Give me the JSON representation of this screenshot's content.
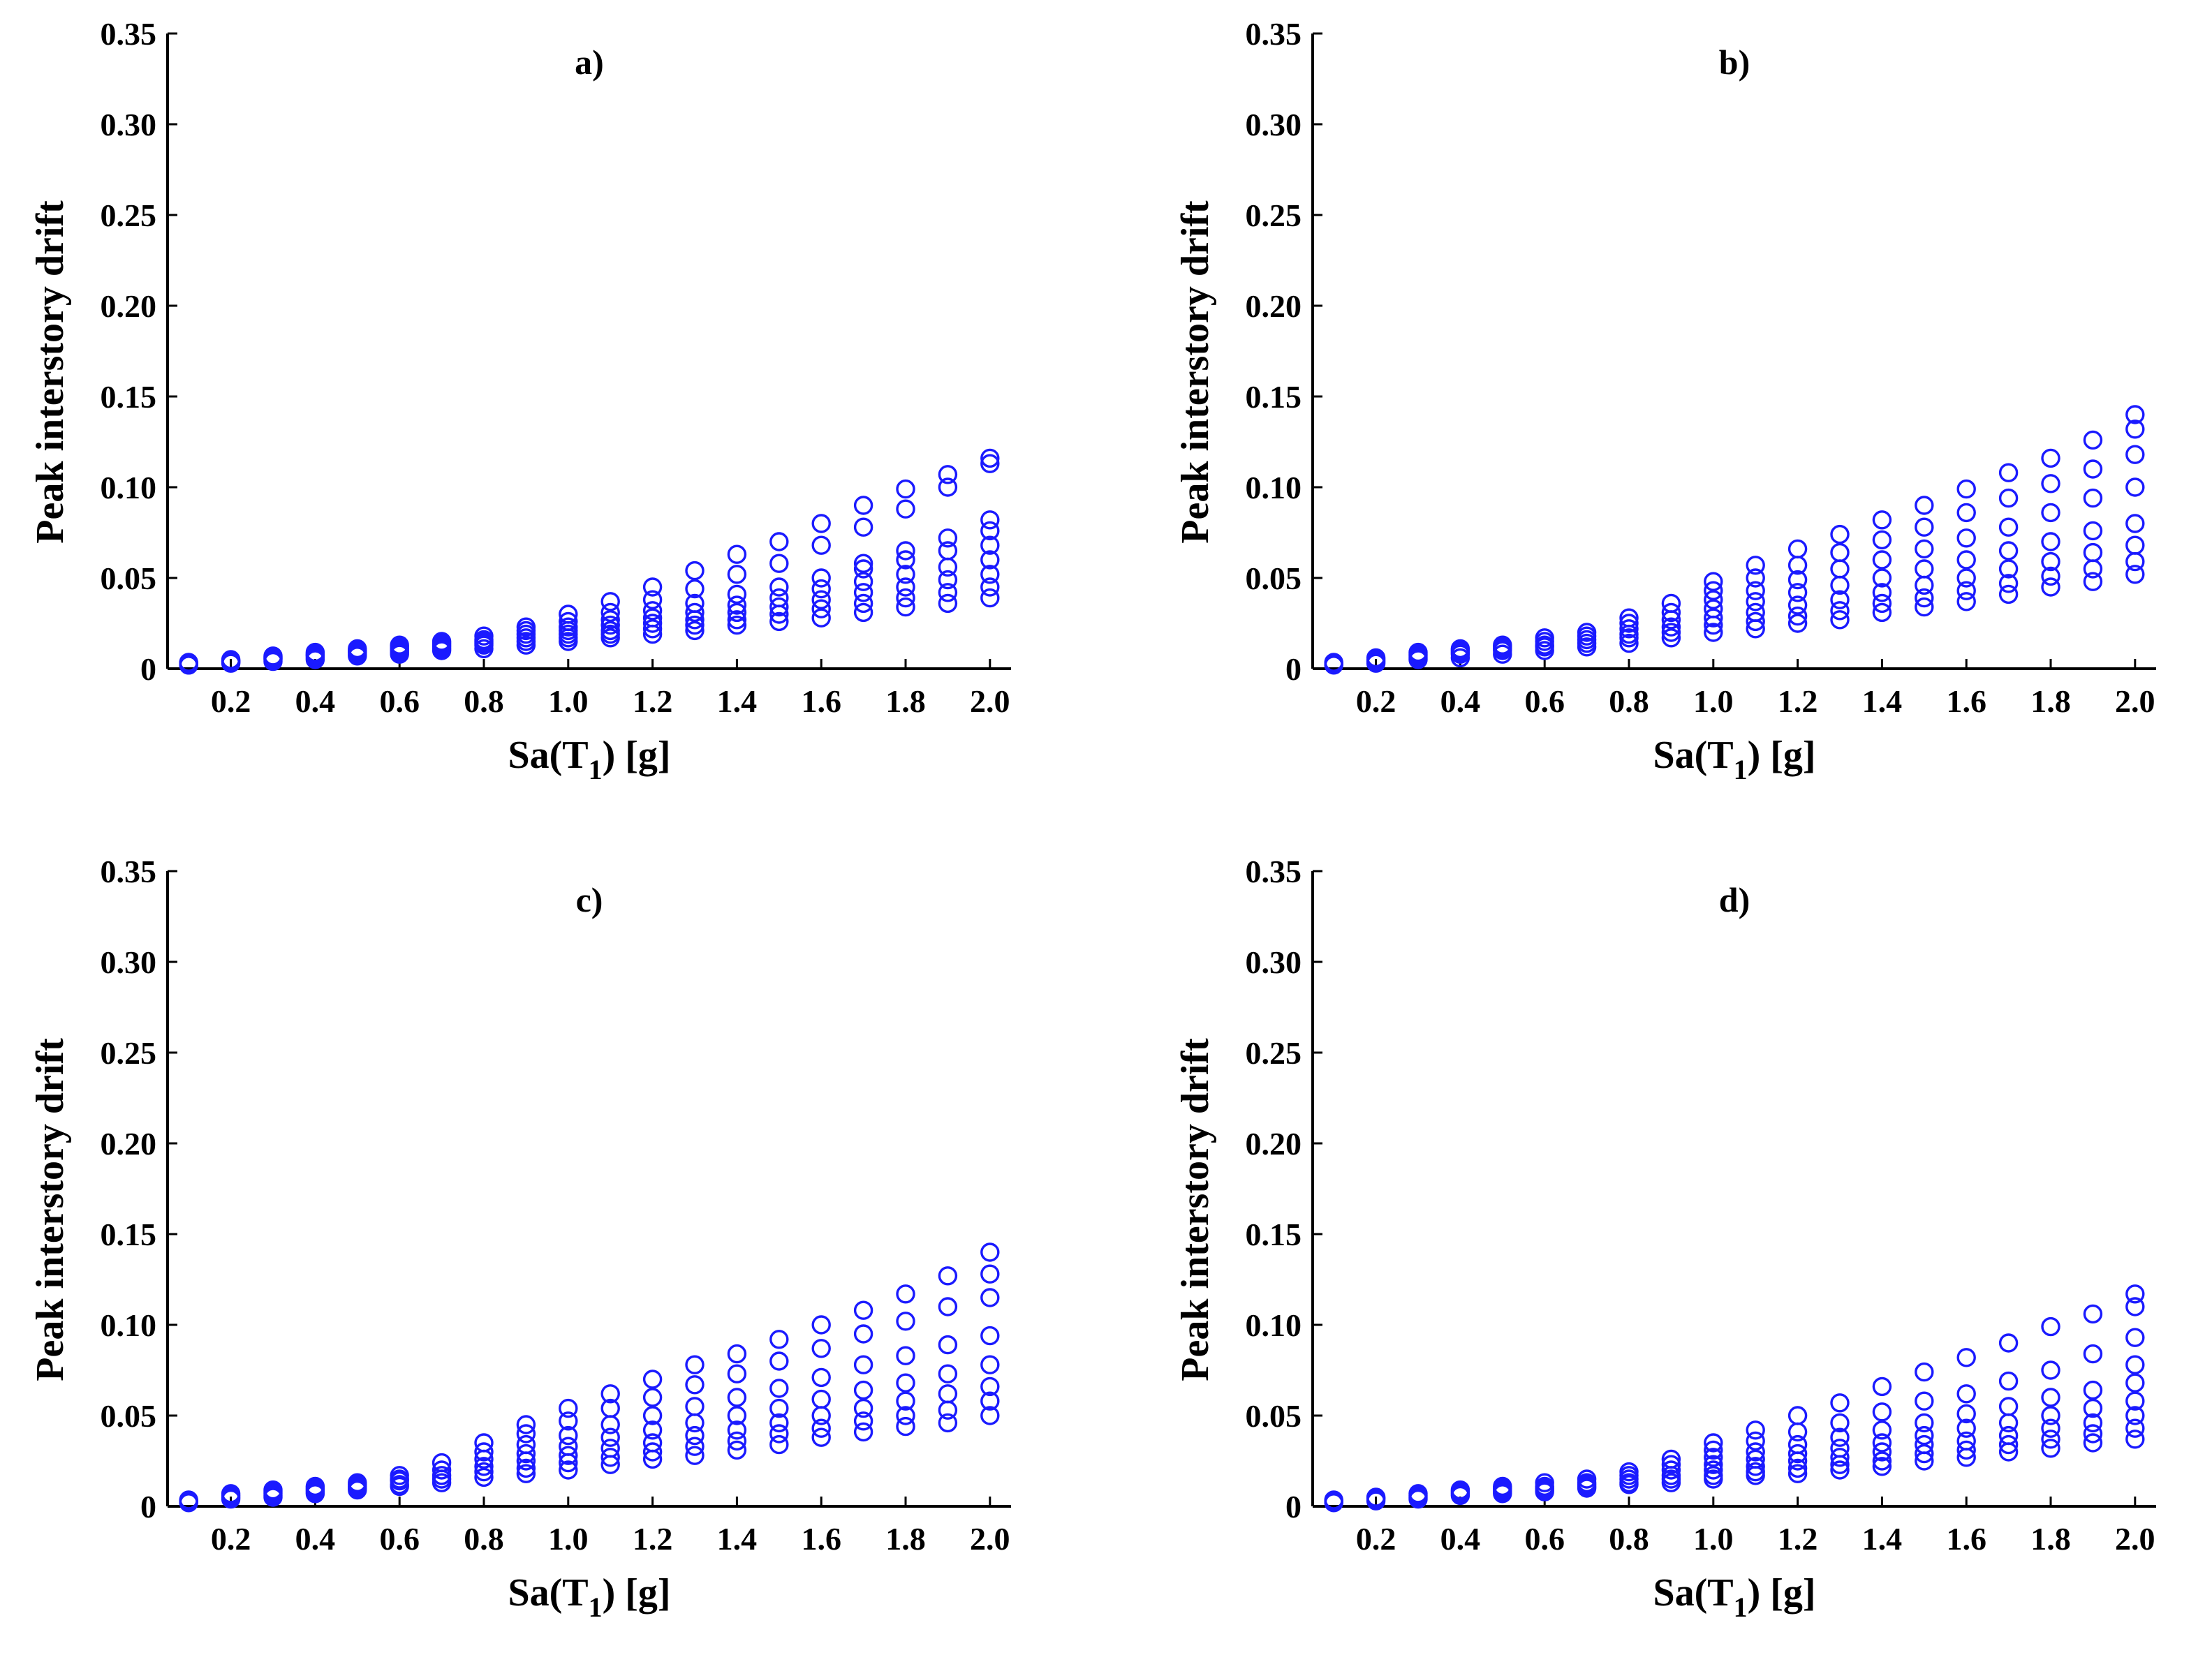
{
  "figure": {
    "colors": {
      "marker": "#1a1aff",
      "axis": "#000000",
      "background": "#ffffff"
    }
  },
  "chart_data": [
    {
      "type": "scatter",
      "title": "a)",
      "xlabel_main": "Sa(T",
      "xlabel_sub": "1",
      "xlabel_tail": ") [g]",
      "ylabel": "Peak interstory drift",
      "xlim": [
        0.05,
        2.05
      ],
      "ylim": [
        0,
        0.35
      ],
      "xticks": [
        0.2,
        0.4,
        0.6,
        0.8,
        1.0,
        1.2,
        1.4,
        1.6,
        1.8,
        2.0
      ],
      "xtick_labels": [
        "0.2",
        "0.4",
        "0.6",
        "0.8",
        "1.0",
        "1.2",
        "1.4",
        "1.6",
        "1.8",
        "2.0"
      ],
      "yticks": [
        0,
        0.05,
        0.1,
        0.15,
        0.2,
        0.25,
        0.3,
        0.35
      ],
      "ytick_labels": [
        "0",
        "0.05",
        "0.10",
        "0.15",
        "0.20",
        "0.25",
        "0.30",
        "0.35"
      ],
      "marker": "circle-open",
      "series": [
        {
          "x": 0.1,
          "y": [
            0.002,
            0.0025,
            0.003,
            0.0035,
            0.002,
            0.003
          ]
        },
        {
          "x": 0.2,
          "y": [
            0.003,
            0.0035,
            0.004,
            0.0045,
            0.005,
            0.004
          ]
        },
        {
          "x": 0.3,
          "y": [
            0.004,
            0.005,
            0.0055,
            0.006,
            0.0065,
            0.007
          ]
        },
        {
          "x": 0.4,
          "y": [
            0.005,
            0.006,
            0.007,
            0.0075,
            0.008,
            0.009
          ]
        },
        {
          "x": 0.5,
          "y": [
            0.007,
            0.008,
            0.009,
            0.0095,
            0.01,
            0.011
          ]
        },
        {
          "x": 0.6,
          "y": [
            0.008,
            0.009,
            0.01,
            0.011,
            0.012,
            0.013
          ]
        },
        {
          "x": 0.7,
          "y": [
            0.01,
            0.011,
            0.012,
            0.013,
            0.014,
            0.015
          ]
        },
        {
          "x": 0.8,
          "y": [
            0.011,
            0.013,
            0.014,
            0.015,
            0.016,
            0.018
          ]
        },
        {
          "x": 0.9,
          "y": [
            0.013,
            0.015,
            0.017,
            0.019,
            0.021,
            0.023
          ]
        },
        {
          "x": 1.0,
          "y": [
            0.015,
            0.017,
            0.019,
            0.021,
            0.023,
            0.026,
            0.03
          ]
        },
        {
          "x": 1.1,
          "y": [
            0.017,
            0.019,
            0.021,
            0.024,
            0.027,
            0.031,
            0.037
          ]
        },
        {
          "x": 1.2,
          "y": [
            0.019,
            0.022,
            0.025,
            0.028,
            0.032,
            0.038,
            0.045
          ]
        },
        {
          "x": 1.3,
          "y": [
            0.021,
            0.024,
            0.027,
            0.031,
            0.036,
            0.044,
            0.054
          ]
        },
        {
          "x": 1.4,
          "y": [
            0.024,
            0.027,
            0.031,
            0.035,
            0.041,
            0.052,
            0.063
          ]
        },
        {
          "x": 1.5,
          "y": [
            0.026,
            0.03,
            0.034,
            0.039,
            0.045,
            0.058,
            0.07
          ]
        },
        {
          "x": 1.6,
          "y": [
            0.028,
            0.033,
            0.038,
            0.044,
            0.05,
            0.068,
            0.08
          ]
        },
        {
          "x": 1.7,
          "y": [
            0.031,
            0.036,
            0.042,
            0.048,
            0.055,
            0.058,
            0.078,
            0.09
          ]
        },
        {
          "x": 1.8,
          "y": [
            0.034,
            0.039,
            0.045,
            0.052,
            0.06,
            0.065,
            0.088,
            0.099
          ]
        },
        {
          "x": 1.9,
          "y": [
            0.036,
            0.042,
            0.049,
            0.056,
            0.065,
            0.072,
            0.1,
            0.107
          ]
        },
        {
          "x": 2.0,
          "y": [
            0.039,
            0.045,
            0.052,
            0.06,
            0.068,
            0.076,
            0.082,
            0.113,
            0.116
          ]
        }
      ]
    },
    {
      "type": "scatter",
      "title": "b)",
      "xlabel_main": "Sa(T",
      "xlabel_sub": "1",
      "xlabel_tail": ") [g]",
      "ylabel": "Peak interstory drift",
      "xlim": [
        0.05,
        2.05
      ],
      "ylim": [
        0,
        0.35
      ],
      "xticks": [
        0.2,
        0.4,
        0.6,
        0.8,
        1.0,
        1.2,
        1.4,
        1.6,
        1.8,
        2.0
      ],
      "xtick_labels": [
        "0.2",
        "0.4",
        "0.6",
        "0.8",
        "1.0",
        "1.2",
        "1.4",
        "1.6",
        "1.8",
        "2.0"
      ],
      "yticks": [
        0,
        0.05,
        0.1,
        0.15,
        0.2,
        0.25,
        0.3,
        0.35
      ],
      "ytick_labels": [
        "0",
        "0.05",
        "0.10",
        "0.15",
        "0.20",
        "0.25",
        "0.30",
        "0.35"
      ],
      "marker": "circle-open",
      "series": [
        {
          "x": 0.1,
          "y": [
            0.002,
            0.0025,
            0.003,
            0.0035
          ]
        },
        {
          "x": 0.2,
          "y": [
            0.003,
            0.004,
            0.005,
            0.006
          ]
        },
        {
          "x": 0.3,
          "y": [
            0.005,
            0.006,
            0.007,
            0.008,
            0.009
          ]
        },
        {
          "x": 0.4,
          "y": [
            0.006,
            0.008,
            0.009,
            0.01,
            0.011
          ]
        },
        {
          "x": 0.5,
          "y": [
            0.008,
            0.01,
            0.011,
            0.012,
            0.013
          ]
        },
        {
          "x": 0.6,
          "y": [
            0.01,
            0.012,
            0.013,
            0.015,
            0.017
          ]
        },
        {
          "x": 0.7,
          "y": [
            0.012,
            0.014,
            0.016,
            0.018,
            0.02
          ]
        },
        {
          "x": 0.8,
          "y": [
            0.014,
            0.017,
            0.019,
            0.022,
            0.025,
            0.028
          ]
        },
        {
          "x": 0.9,
          "y": [
            0.017,
            0.02,
            0.023,
            0.027,
            0.031,
            0.036
          ]
        },
        {
          "x": 1.0,
          "y": [
            0.02,
            0.024,
            0.028,
            0.033,
            0.038,
            0.043,
            0.048
          ]
        },
        {
          "x": 1.1,
          "y": [
            0.022,
            0.026,
            0.031,
            0.037,
            0.043,
            0.05,
            0.057
          ]
        },
        {
          "x": 1.2,
          "y": [
            0.025,
            0.029,
            0.035,
            0.042,
            0.049,
            0.057,
            0.066
          ]
        },
        {
          "x": 1.3,
          "y": [
            0.027,
            0.032,
            0.038,
            0.046,
            0.055,
            0.064,
            0.074
          ]
        },
        {
          "x": 1.4,
          "y": [
            0.031,
            0.036,
            0.042,
            0.05,
            0.06,
            0.071,
            0.082
          ]
        },
        {
          "x": 1.5,
          "y": [
            0.034,
            0.039,
            0.046,
            0.055,
            0.066,
            0.078,
            0.09
          ]
        },
        {
          "x": 1.6,
          "y": [
            0.037,
            0.043,
            0.05,
            0.06,
            0.072,
            0.086,
            0.099
          ]
        },
        {
          "x": 1.7,
          "y": [
            0.041,
            0.047,
            0.055,
            0.065,
            0.078,
            0.094,
            0.108
          ]
        },
        {
          "x": 1.8,
          "y": [
            0.045,
            0.051,
            0.059,
            0.07,
            0.086,
            0.102,
            0.116
          ]
        },
        {
          "x": 1.9,
          "y": [
            0.048,
            0.055,
            0.064,
            0.076,
            0.094,
            0.11,
            0.126
          ]
        },
        {
          "x": 2.0,
          "y": [
            0.052,
            0.059,
            0.068,
            0.08,
            0.1,
            0.118,
            0.132,
            0.14
          ]
        }
      ]
    },
    {
      "type": "scatter",
      "title": "c)",
      "xlabel_main": "Sa(T",
      "xlabel_sub": "1",
      "xlabel_tail": ") [g]",
      "ylabel": "Peak interstory drift",
      "xlim": [
        0.05,
        2.05
      ],
      "ylim": [
        0,
        0.35
      ],
      "xticks": [
        0.2,
        0.4,
        0.6,
        0.8,
        1.0,
        1.2,
        1.4,
        1.6,
        1.8,
        2.0
      ],
      "xtick_labels": [
        "0.2",
        "0.4",
        "0.6",
        "0.8",
        "1.0",
        "1.2",
        "1.4",
        "1.6",
        "1.8",
        "2.0"
      ],
      "yticks": [
        0,
        0.05,
        0.1,
        0.15,
        0.2,
        0.25,
        0.3,
        0.35
      ],
      "ytick_labels": [
        "0",
        "0.05",
        "0.10",
        "0.15",
        "0.20",
        "0.25",
        "0.30",
        "0.35"
      ],
      "marker": "circle-open",
      "series": [
        {
          "x": 0.1,
          "y": [
            0.002,
            0.0025,
            0.003,
            0.0035
          ]
        },
        {
          "x": 0.2,
          "y": [
            0.004,
            0.005,
            0.006,
            0.007
          ]
        },
        {
          "x": 0.3,
          "y": [
            0.005,
            0.006,
            0.007,
            0.008,
            0.009
          ]
        },
        {
          "x": 0.4,
          "y": [
            0.007,
            0.008,
            0.009,
            0.01,
            0.011
          ]
        },
        {
          "x": 0.5,
          "y": [
            0.009,
            0.01,
            0.011,
            0.012,
            0.013
          ]
        },
        {
          "x": 0.6,
          "y": [
            0.011,
            0.012,
            0.014,
            0.015,
            0.017
          ]
        },
        {
          "x": 0.7,
          "y": [
            0.013,
            0.015,
            0.017,
            0.02,
            0.024
          ]
        },
        {
          "x": 0.8,
          "y": [
            0.016,
            0.019,
            0.022,
            0.026,
            0.03,
            0.035
          ]
        },
        {
          "x": 0.9,
          "y": [
            0.018,
            0.021,
            0.025,
            0.029,
            0.034,
            0.04,
            0.045
          ]
        },
        {
          "x": 1.0,
          "y": [
            0.02,
            0.024,
            0.028,
            0.033,
            0.039,
            0.047,
            0.054
          ]
        },
        {
          "x": 1.1,
          "y": [
            0.023,
            0.027,
            0.032,
            0.038,
            0.045,
            0.054,
            0.062
          ]
        },
        {
          "x": 1.2,
          "y": [
            0.026,
            0.03,
            0.035,
            0.042,
            0.05,
            0.06,
            0.07
          ]
        },
        {
          "x": 1.3,
          "y": [
            0.028,
            0.033,
            0.039,
            0.046,
            0.055,
            0.067,
            0.078
          ]
        },
        {
          "x": 1.4,
          "y": [
            0.031,
            0.036,
            0.042,
            0.05,
            0.06,
            0.073,
            0.084
          ]
        },
        {
          "x": 1.5,
          "y": [
            0.034,
            0.04,
            0.046,
            0.054,
            0.065,
            0.08,
            0.092
          ]
        },
        {
          "x": 1.6,
          "y": [
            0.038,
            0.043,
            0.05,
            0.059,
            0.071,
            0.087,
            0.1
          ]
        },
        {
          "x": 1.7,
          "y": [
            0.041,
            0.047,
            0.054,
            0.064,
            0.078,
            0.095,
            0.108
          ]
        },
        {
          "x": 1.8,
          "y": [
            0.044,
            0.05,
            0.058,
            0.068,
            0.083,
            0.102,
            0.117
          ]
        },
        {
          "x": 1.9,
          "y": [
            0.046,
            0.053,
            0.062,
            0.073,
            0.089,
            0.11,
            0.127
          ]
        },
        {
          "x": 2.0,
          "y": [
            0.05,
            0.058,
            0.066,
            0.078,
            0.094,
            0.115,
            0.128,
            0.14
          ]
        }
      ]
    },
    {
      "type": "scatter",
      "title": "d)",
      "xlabel_main": "Sa(T",
      "xlabel_sub": "1",
      "xlabel_tail": ") [g]",
      "ylabel": "Peak interstory drift",
      "xlim": [
        0.05,
        2.05
      ],
      "ylim": [
        0,
        0.35
      ],
      "xticks": [
        0.2,
        0.4,
        0.6,
        0.8,
        1.0,
        1.2,
        1.4,
        1.6,
        1.8,
        2.0
      ],
      "xtick_labels": [
        "0.2",
        "0.4",
        "0.6",
        "0.8",
        "1.0",
        "1.2",
        "1.4",
        "1.6",
        "1.8",
        "2.0"
      ],
      "yticks": [
        0,
        0.05,
        0.1,
        0.15,
        0.2,
        0.25,
        0.3,
        0.35
      ],
      "ytick_labels": [
        "0",
        "0.05",
        "0.10",
        "0.15",
        "0.20",
        "0.25",
        "0.30",
        "0.35"
      ],
      "marker": "circle-open",
      "series": [
        {
          "x": 0.1,
          "y": [
            0.002,
            0.0025,
            0.003,
            0.0035
          ]
        },
        {
          "x": 0.2,
          "y": [
            0.003,
            0.004,
            0.0045,
            0.005
          ]
        },
        {
          "x": 0.3,
          "y": [
            0.004,
            0.005,
            0.006,
            0.007
          ]
        },
        {
          "x": 0.4,
          "y": [
            0.006,
            0.007,
            0.008,
            0.009
          ]
        },
        {
          "x": 0.5,
          "y": [
            0.007,
            0.008,
            0.009,
            0.01,
            0.011
          ]
        },
        {
          "x": 0.6,
          "y": [
            0.008,
            0.009,
            0.01,
            0.011,
            0.013
          ]
        },
        {
          "x": 0.7,
          "y": [
            0.01,
            0.011,
            0.012,
            0.013,
            0.015
          ]
        },
        {
          "x": 0.8,
          "y": [
            0.012,
            0.013,
            0.015,
            0.017,
            0.019
          ]
        },
        {
          "x": 0.9,
          "y": [
            0.013,
            0.015,
            0.017,
            0.02,
            0.023,
            0.026
          ]
        },
        {
          "x": 1.0,
          "y": [
            0.015,
            0.017,
            0.02,
            0.023,
            0.027,
            0.031,
            0.035
          ]
        },
        {
          "x": 1.1,
          "y": [
            0.017,
            0.019,
            0.022,
            0.026,
            0.03,
            0.036,
            0.042
          ]
        },
        {
          "x": 1.2,
          "y": [
            0.018,
            0.021,
            0.025,
            0.029,
            0.034,
            0.041,
            0.05
          ]
        },
        {
          "x": 1.3,
          "y": [
            0.02,
            0.023,
            0.027,
            0.032,
            0.038,
            0.046,
            0.057
          ]
        },
        {
          "x": 1.4,
          "y": [
            0.022,
            0.025,
            0.03,
            0.035,
            0.042,
            0.052,
            0.066
          ]
        },
        {
          "x": 1.5,
          "y": [
            0.025,
            0.029,
            0.034,
            0.039,
            0.046,
            0.058,
            0.074
          ]
        },
        {
          "x": 1.6,
          "y": [
            0.027,
            0.031,
            0.036,
            0.043,
            0.051,
            0.062,
            0.082
          ]
        },
        {
          "x": 1.7,
          "y": [
            0.03,
            0.034,
            0.039,
            0.046,
            0.055,
            0.069,
            0.09
          ]
        },
        {
          "x": 1.8,
          "y": [
            0.032,
            0.037,
            0.043,
            0.05,
            0.06,
            0.075,
            0.099
          ]
        },
        {
          "x": 1.9,
          "y": [
            0.035,
            0.04,
            0.046,
            0.054,
            0.064,
            0.084,
            0.106
          ]
        },
        {
          "x": 2.0,
          "y": [
            0.037,
            0.043,
            0.05,
            0.058,
            0.068,
            0.078,
            0.093,
            0.11,
            0.117
          ]
        }
      ]
    }
  ]
}
